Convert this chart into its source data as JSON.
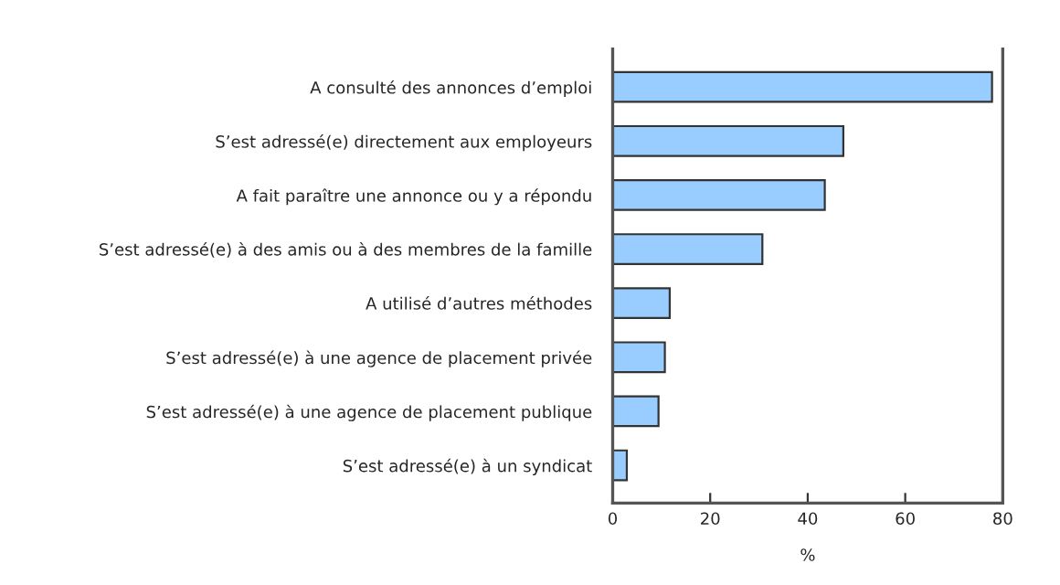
{
  "chart_data": {
    "type": "bar",
    "orientation": "horizontal",
    "xlabel": "%",
    "categories": [
      "A consulté des annonces d’emploi",
      "S’est adressé(e) directement aux employeurs",
      "A fait paraître une annonce ou y a répondu",
      "S’est adressé(e) à des amis ou à des membres de la famille",
      "A utilisé d’autres méthodes",
      "S’est adressé(e) à une agence de placement privée",
      "S’est adressé(e) à une agence de placement publique",
      "S’est adressé(e) à un syndicat"
    ],
    "values": [
      77.8,
      47.3,
      43.5,
      30.7,
      11.7,
      10.7,
      9.4,
      2.9
    ],
    "color": "#99ccff",
    "xlim": [
      0,
      80
    ],
    "xticks": [
      0,
      20,
      40,
      60,
      80
    ],
    "grid": false,
    "legend": false
  }
}
